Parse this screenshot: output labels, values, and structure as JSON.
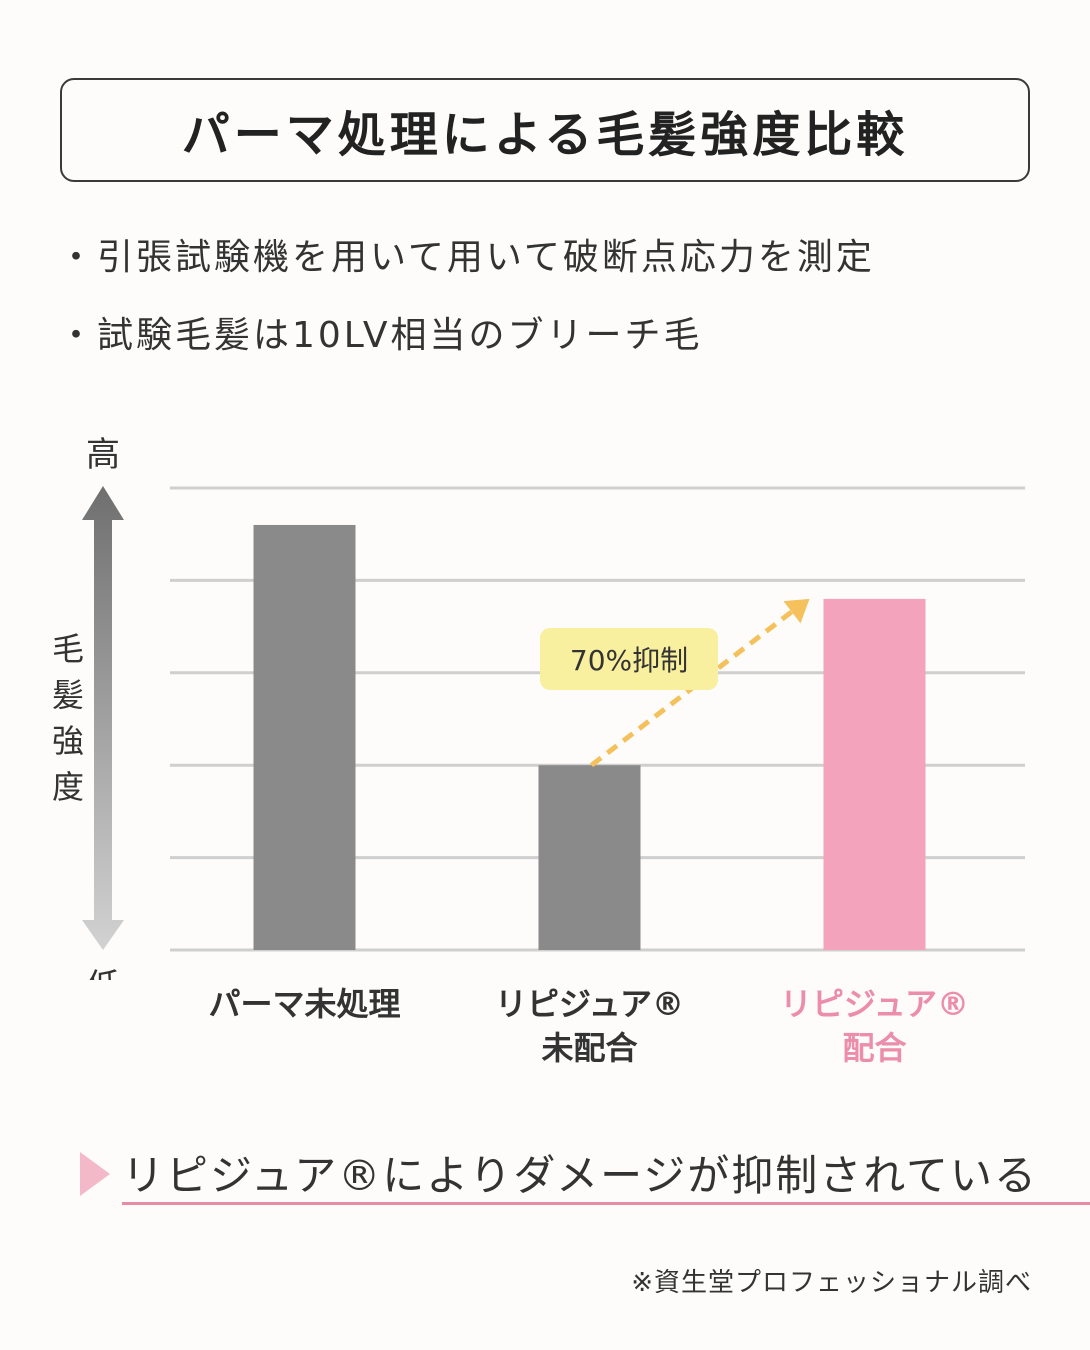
{
  "title": "パーマ処理による毛髪強度比較",
  "bullets": [
    "・引張試験機を用いて用いて破断点応力を測定",
    "・試験毛髪は10LV相当のブリーチ毛"
  ],
  "chart_data": {
    "type": "bar",
    "ylabel": "毛髪強度",
    "y_high_label": "高",
    "y_low_label": "低",
    "ylim": [
      0,
      5
    ],
    "grid": true,
    "categories": [
      "パーマ未処理",
      "リピジュア®未配合",
      "リピジュア®配合"
    ],
    "category_lines": [
      [
        "パーマ未処理"
      ],
      [
        "リピジュア®",
        "未配合"
      ],
      [
        "リピジュア®",
        "配合"
      ]
    ],
    "values": [
      4.6,
      2.0,
      3.8
    ],
    "annotation": "70%抑制",
    "colors": {
      "bar_default": "#8a8a8a",
      "bar_highlight": "#f3a3bb",
      "annotation_bg": "#f8f09e",
      "arrow": "#f4c15c",
      "highlight_text": "#ec8daa"
    }
  },
  "conclusion": "リピジュア®によりダメージが抑制されている",
  "footnote": "※資生堂プロフェッショナル調べ"
}
